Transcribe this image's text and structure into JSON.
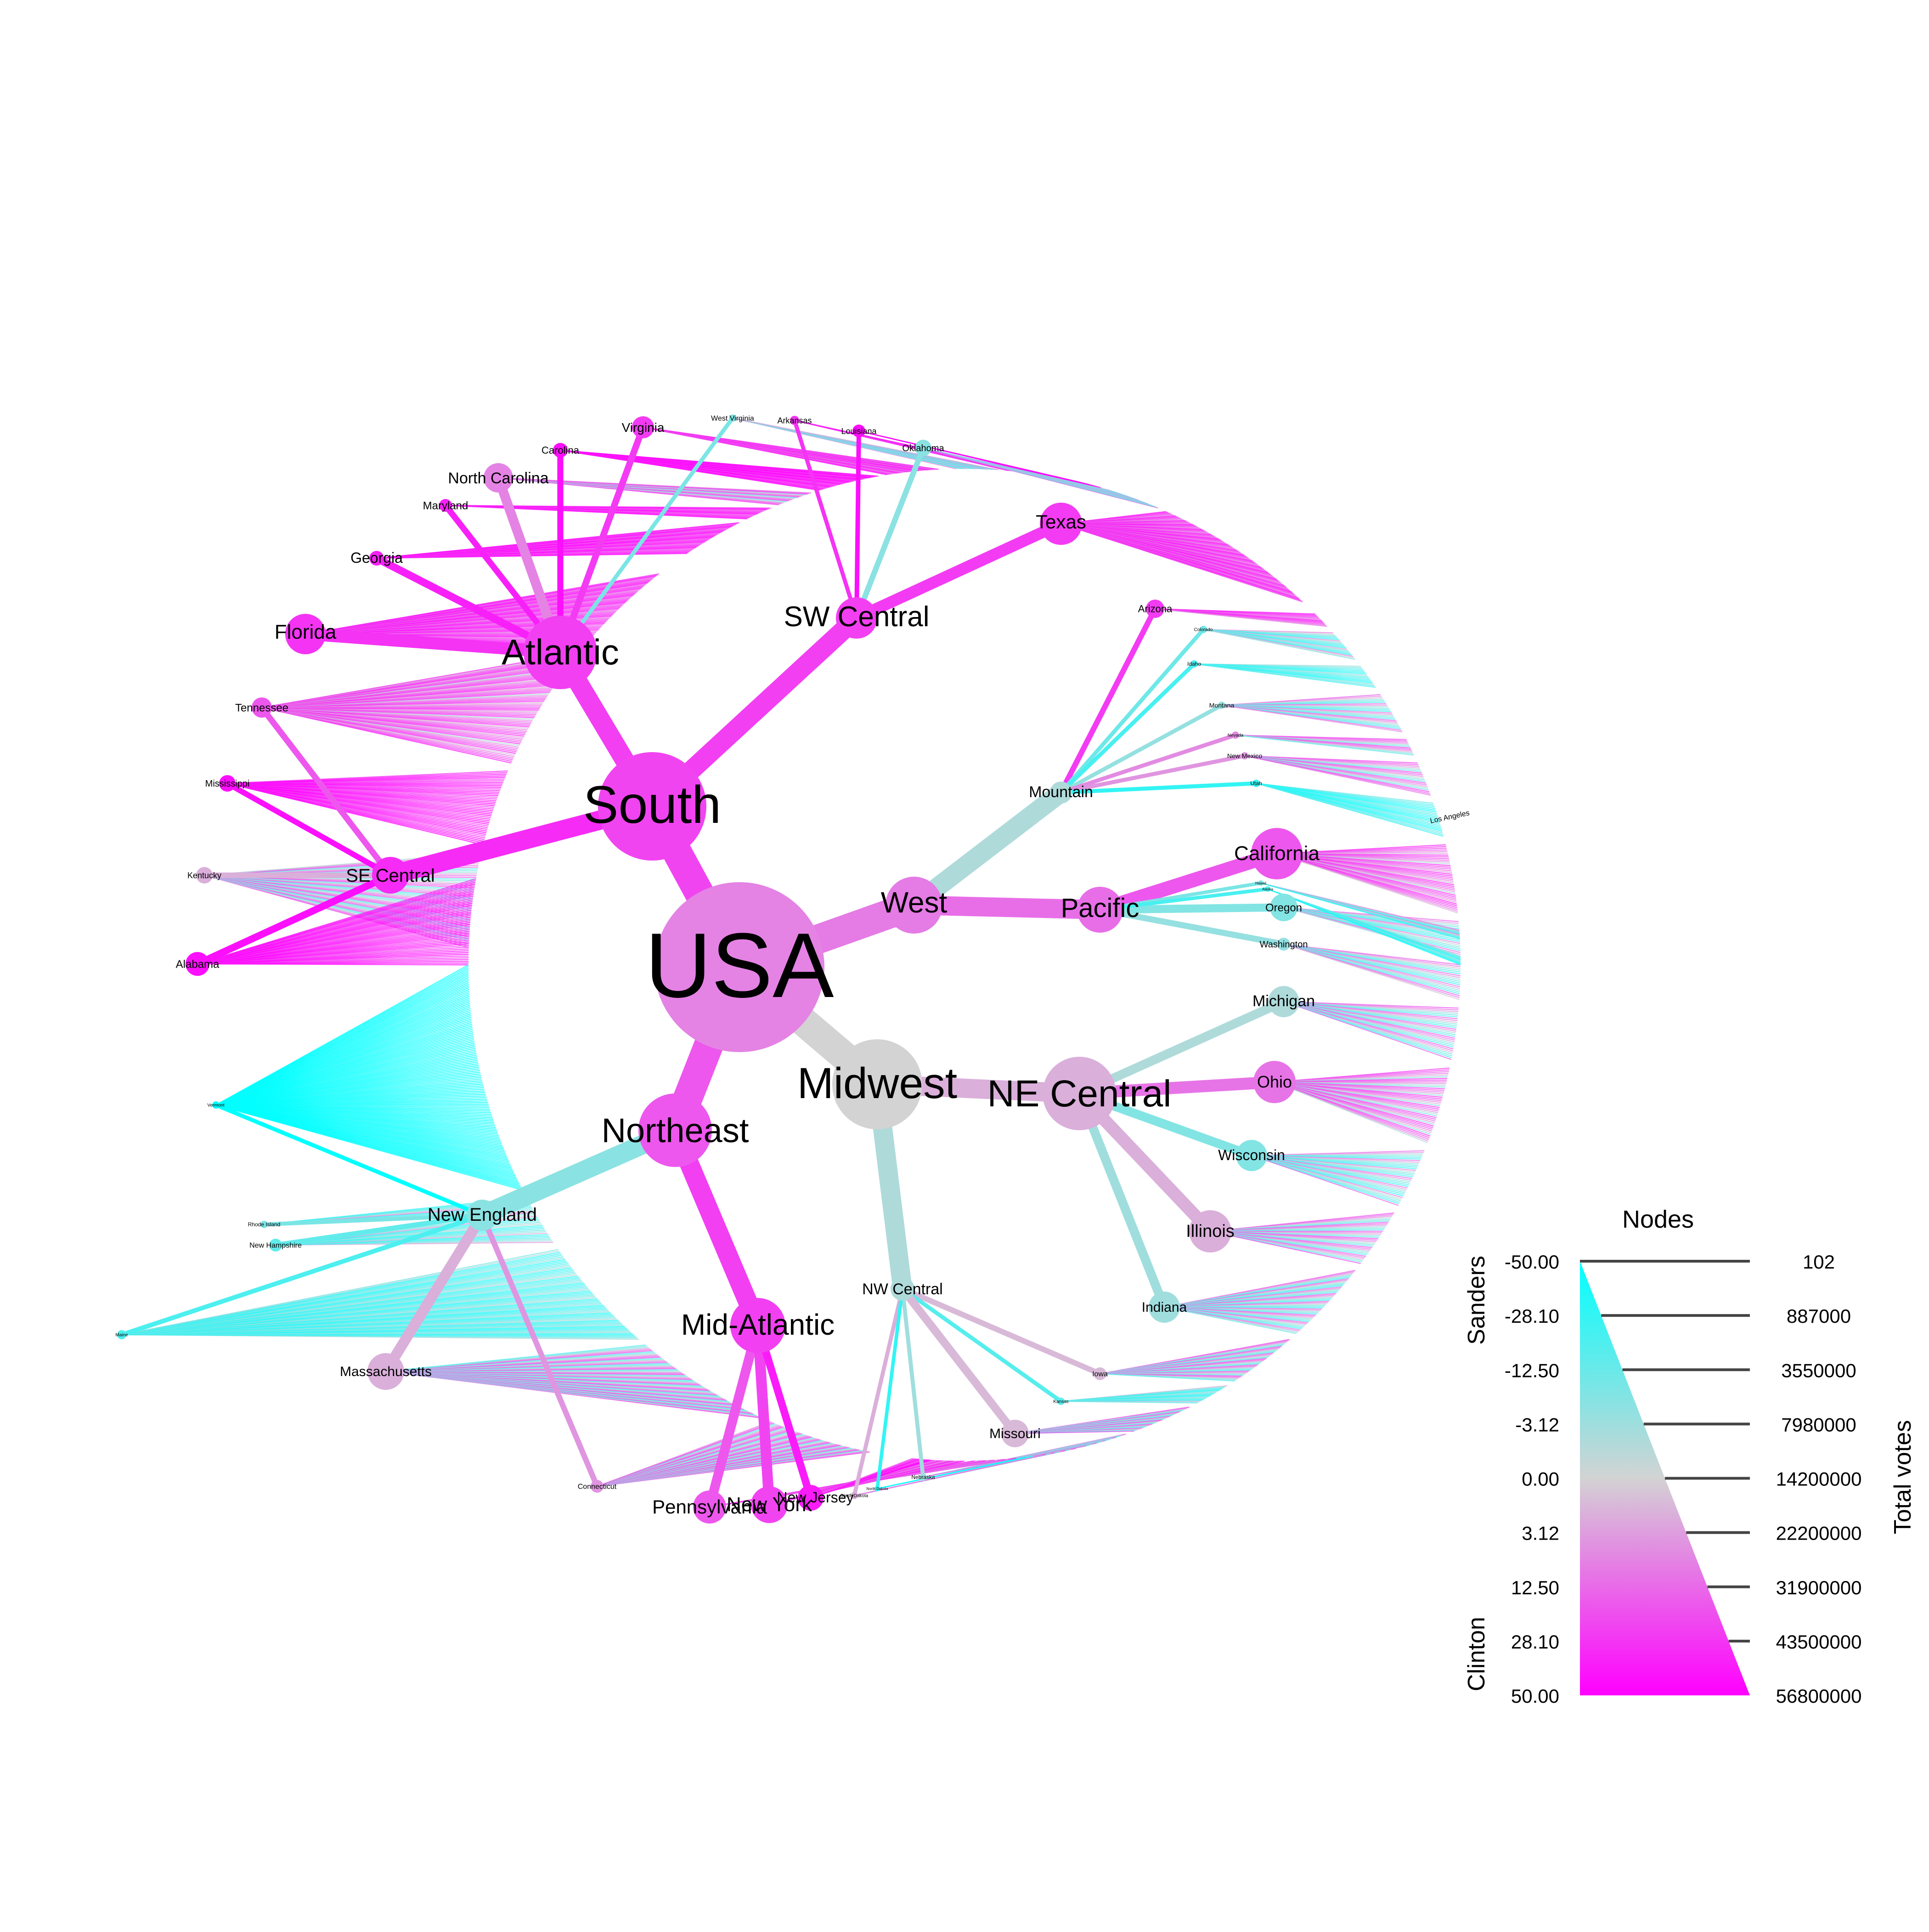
{
  "colors": {
    "sanders": "#00ffff",
    "neutral": "#d3d3d3",
    "clinton": "#ff00ff"
  },
  "root": {
    "label": "USA",
    "value": -5,
    "regions": [
      {
        "label": "South",
        "value": -16,
        "divisions": [
          {
            "label": "Atlantic",
            "value": -17,
            "states": [
              {
                "label": "Florida",
                "value": -20
              },
              {
                "label": "Georgia",
                "value": -25
              },
              {
                "label": "Maryland",
                "value": -25
              },
              {
                "label": "North Carolina",
                "value": -5
              },
              {
                "label": "Carolina",
                "value": -30
              },
              {
                "label": "Virginia",
                "value": -18
              },
              {
                "label": "West Virginia",
                "value": 6
              }
            ]
          },
          {
            "label": "SW Central",
            "value": -17,
            "states": [
              {
                "label": "Arkansas",
                "value": -20
              },
              {
                "label": "Louisiana",
                "value": -30
              },
              {
                "label": "Oklahoma",
                "value": 4
              },
              {
                "label": "Texas",
                "value": -18
              }
            ]
          },
          {
            "label": "SE Central",
            "value": -22,
            "states": [
              {
                "label": "Tennessee",
                "value": -12
              },
              {
                "label": "Mississippi",
                "value": -30
              },
              {
                "label": "Kentucky",
                "value": -1
              },
              {
                "label": "Alabama",
                "value": -30
              }
            ]
          }
        ]
      },
      {
        "label": "West",
        "value": -6,
        "divisions": [
          {
            "label": "Mountain",
            "value": 1,
            "states": [
              {
                "label": "Arizona",
                "value": -18
              },
              {
                "label": "Colorado",
                "value": 8
              },
              {
                "label": "Idaho",
                "value": 15
              },
              {
                "label": "Montana",
                "value": 3
              },
              {
                "label": "Nevada",
                "value": -4
              },
              {
                "label": "New Mexico",
                "value": -3
              },
              {
                "label": "Utah",
                "value": 20
              }
            ]
          },
          {
            "label": "Pacific",
            "value": -8,
            "states": [
              {
                "label": "California",
                "value": -12
              },
              {
                "label": "Oregon",
                "value": 5
              },
              {
                "label": "Washington",
                "value": 3
              },
              {
                "label": "Hawaii",
                "value": 6
              },
              {
                "label": "Alaska",
                "value": 15
              }
            ]
          }
        ]
      },
      {
        "label": "Midwest",
        "value": 0,
        "divisions": [
          {
            "label": "NE Central",
            "value": -1,
            "states": [
              {
                "label": "Michigan",
                "value": 1
              },
              {
                "label": "Ohio",
                "value": -7
              },
              {
                "label": "Wisconsin",
                "value": 5
              },
              {
                "label": "Illinois",
                "value": -1
              },
              {
                "label": "Indiana",
                "value": 2
              }
            ]
          },
          {
            "label": "NW Central",
            "value": 1,
            "states": [
              {
                "label": "Iowa",
                "value": -0.5
              },
              {
                "label": "Kansas",
                "value": 12
              },
              {
                "label": "Missouri",
                "value": -0.5
              },
              {
                "label": "Nebraska",
                "value": 2
              },
              {
                "label": "South Dakota",
                "value": -1
              },
              {
                "label": "North Dakota",
                "value": 20
              }
            ]
          }
        ]
      },
      {
        "label": "Northeast",
        "value": -12,
        "divisions": [
          {
            "label": "New England",
            "value": 4,
            "states": [
              {
                "label": "Vermont",
                "value": 40
              },
              {
                "label": "Rhode Island",
                "value": 6
              },
              {
                "label": "New Hampshire",
                "value": 10
              },
              {
                "label": "Maine",
                "value": 14
              },
              {
                "label": "Massachusetts",
                "value": -1
              },
              {
                "label": "Connecticut",
                "value": -3
              }
            ]
          },
          {
            "label": "Mid-Atlantic",
            "value": -17,
            "states": [
              {
                "label": "Pennsylvania",
                "value": -12
              },
              {
                "label": "New York",
                "value": -16
              },
              {
                "label": "New Jersey",
                "value": -26
              }
            ]
          }
        ]
      }
    ]
  },
  "extra_labels": {
    "los_angeles": "Los Angeles"
  },
  "legend": {
    "title": "Nodes",
    "margin_ticks": [
      "-50.00",
      "-28.10",
      "-12.50",
      "-3.12",
      "0.00",
      "3.12",
      "12.50",
      "28.10",
      "50.00"
    ],
    "vote_ticks": [
      "102",
      "887000",
      "3550000",
      "7980000",
      "14200000",
      "22200000",
      "31900000",
      "43500000",
      "56800000"
    ],
    "sanders_label": "Sanders",
    "clinton_label": "Clinton",
    "votes_label": "Total votes"
  }
}
